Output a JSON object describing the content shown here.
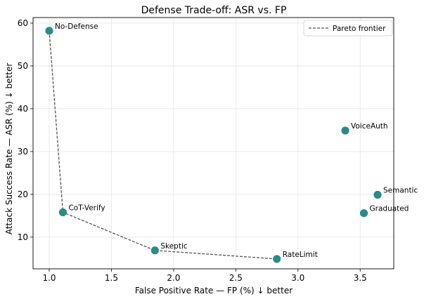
{
  "chart_data": {
    "type": "scatter",
    "title": "Defense Trade-off: ASR vs. FP",
    "xlabel": "False Positive Rate — FP (%) ↓ better",
    "ylabel": "Attack Success Rate — ASR (%) ↓ better",
    "xlim": [
      0.87,
      3.77
    ],
    "ylim": [
      2.6,
      61.3
    ],
    "xticks": [
      1.0,
      1.5,
      2.0,
      2.5,
      3.0,
      3.5
    ],
    "xtick_labels": [
      "1.0",
      "1.5",
      "2.0",
      "2.5",
      "3.0",
      "3.5"
    ],
    "yticks": [
      10,
      20,
      30,
      40,
      50,
      60
    ],
    "ytick_labels": [
      "10",
      "20",
      "30",
      "40",
      "50",
      "60"
    ],
    "grid": true,
    "point_color": "#2a8c88",
    "points": [
      {
        "label": "No-Defense",
        "x": 1.0,
        "y": 58.2
      },
      {
        "label": "CoT-Verify",
        "x": 1.11,
        "y": 15.8
      },
      {
        "label": "Skeptic",
        "x": 1.85,
        "y": 6.9
      },
      {
        "label": "RateLimit",
        "x": 2.83,
        "y": 4.9
      },
      {
        "label": "VoiceAuth",
        "x": 3.38,
        "y": 34.9
      },
      {
        "label": "Semantic",
        "x": 3.64,
        "y": 19.9
      },
      {
        "label": "Graduated",
        "x": 3.53,
        "y": 15.6
      }
    ],
    "frontier": {
      "name": "Pareto frontier",
      "color": "#555555",
      "order": [
        "No-Defense",
        "CoT-Verify",
        "Skeptic",
        "RateLimit"
      ]
    },
    "legend": {
      "position": "top-right",
      "entries": [
        "Pareto frontier"
      ]
    }
  }
}
